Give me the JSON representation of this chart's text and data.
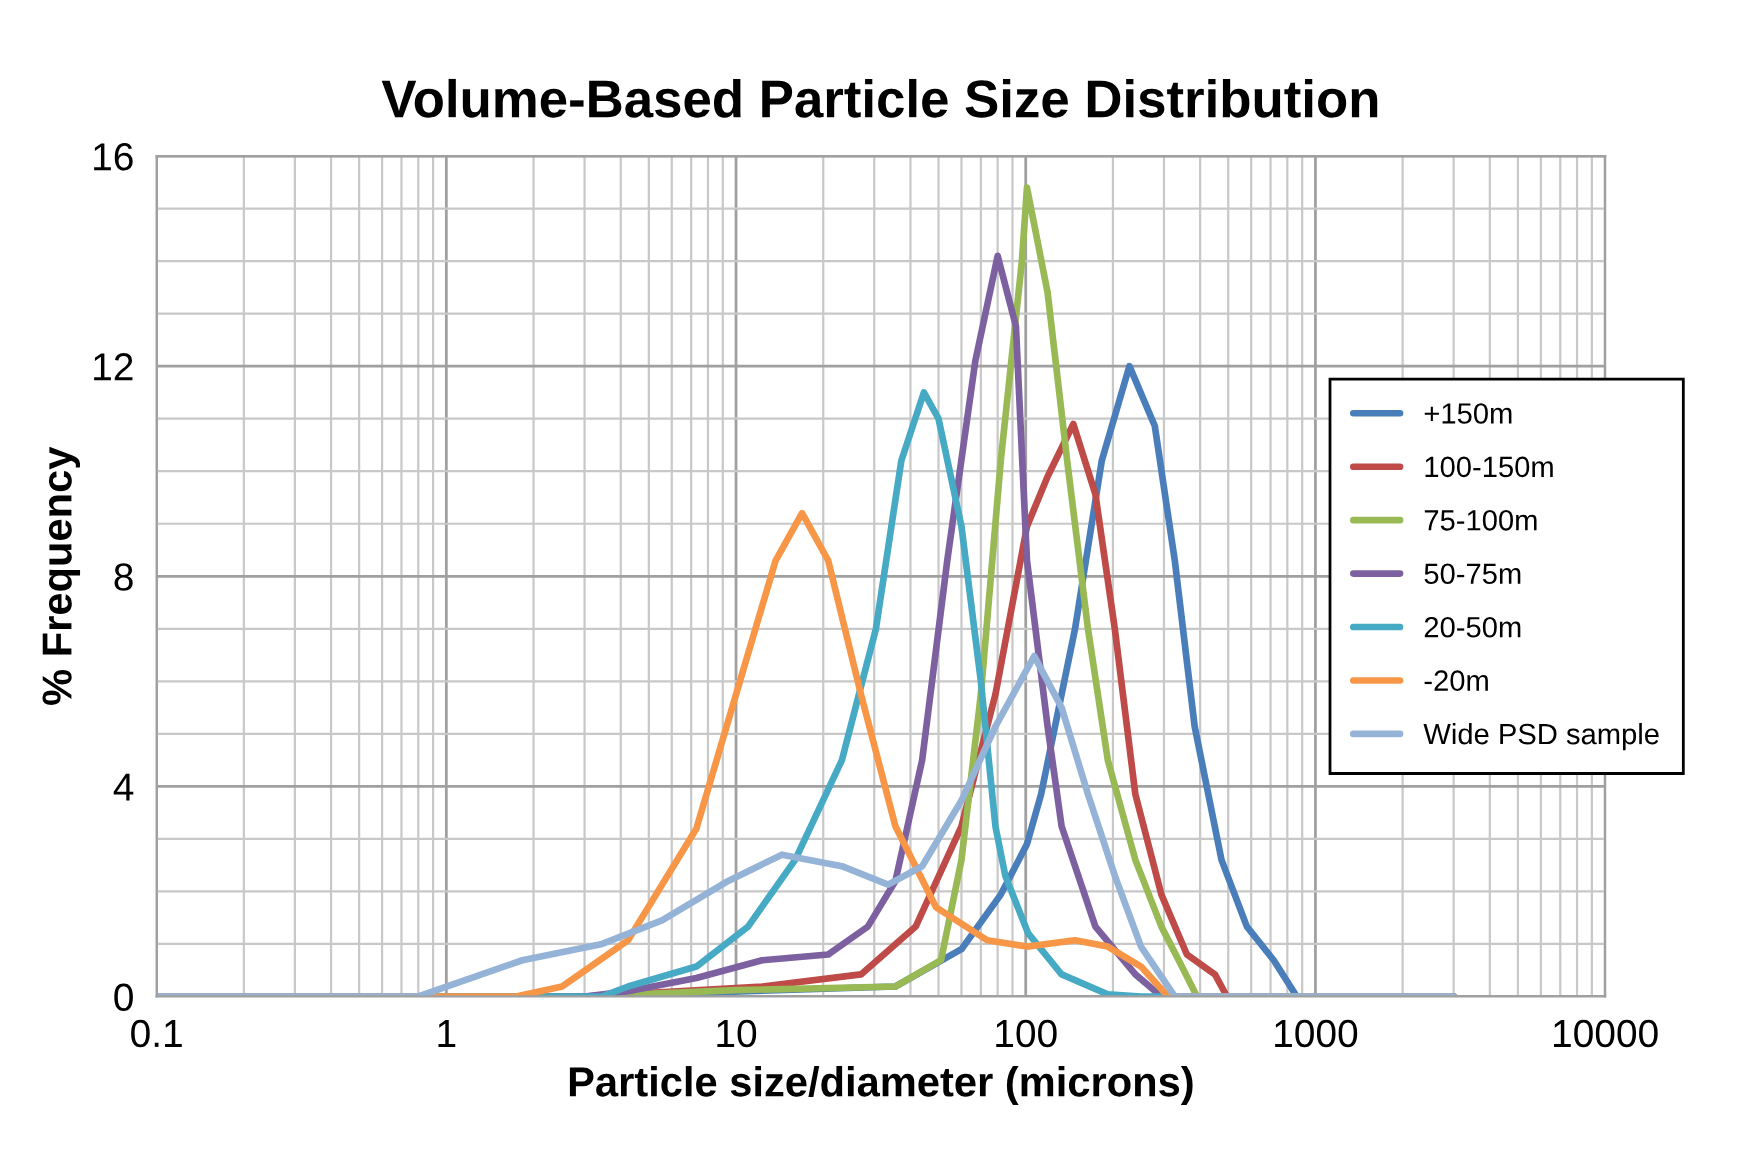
{
  "chart_data": {
    "type": "line",
    "title": "Volume-Based Particle Size Distribution",
    "xlabel": "Particle size/diameter (microns)",
    "ylabel": "% Frequency",
    "log": "x",
    "xlim": [
      0.1,
      10000
    ],
    "xticks": [
      0.1,
      1,
      10,
      100,
      1000,
      10000
    ],
    "ylim": [
      0,
      16
    ],
    "yticks": [
      0,
      4,
      8,
      12,
      16
    ],
    "grid": true,
    "legend": "right",
    "line_style": "solid",
    "marker": "none",
    "series": [
      {
        "name": "+150m",
        "color": "#4a7ebb",
        "x": [
          0.1,
          3,
          35.5,
          60,
          82,
          101,
          113,
          148,
          183,
          228,
          279,
          327,
          383,
          474,
          580,
          718,
          862,
          3000
        ],
        "values": [
          0,
          0,
          0.19,
          0.9,
          1.94,
          2.9,
          3.85,
          7,
          10.2,
          12,
          10.86,
          8.3,
          5.14,
          2.6,
          1.33,
          0.69,
          0,
          0
        ]
      },
      {
        "name": "100-150m",
        "color": "#be4b48",
        "x": [
          0.1,
          3,
          12.3,
          27,
          41.7,
          60,
          78.6,
          101,
          119,
          146,
          174,
          203,
          239,
          294,
          360,
          450,
          495,
          3000
        ],
        "values": [
          0,
          0,
          0.19,
          0.42,
          1.33,
          3.24,
          5.75,
          8.95,
          9.9,
          10.9,
          9.56,
          7,
          3.85,
          1.94,
          0.8,
          0.42,
          0,
          0
        ]
      },
      {
        "name": "75-100m",
        "color": "#98b954",
        "x": [
          0.1,
          3,
          10,
          35.5,
          51,
          60,
          70,
          82,
          97,
          101,
          119,
          139,
          164,
          192,
          239,
          294,
          346,
          390,
          3000
        ],
        "values": [
          0,
          0,
          0.12,
          0.19,
          0.69,
          2.6,
          5.75,
          10.2,
          14,
          15.4,
          13.4,
          10.2,
          7,
          4.5,
          2.6,
          1.33,
          0.57,
          0,
          0
        ]
      },
      {
        "name": "50-75m",
        "color": "#7d60a0",
        "x": [
          0.1,
          3,
          4.24,
          7.3,
          12.3,
          20.8,
          28.5,
          35.5,
          43.9,
          53.6,
          67,
          80,
          92.5,
          101,
          119,
          133,
          174,
          239,
          294,
          3000
        ],
        "values": [
          0,
          0,
          0.1,
          0.35,
          0.69,
          0.8,
          1.33,
          2.2,
          4.5,
          8.3,
          12.1,
          14.1,
          12.76,
          8.3,
          5.14,
          3.24,
          1.33,
          0.42,
          0,
          0
        ]
      },
      {
        "name": "20-50m",
        "color": "#46aac5",
        "x": [
          0.1,
          3.45,
          4.24,
          7.3,
          11,
          16,
          23.2,
          30.4,
          37.2,
          44.5,
          50,
          60,
          70,
          78.6,
          85,
          102,
          133,
          192,
          250,
          3000
        ],
        "values": [
          0,
          0,
          0.19,
          0.57,
          1.33,
          2.6,
          4.5,
          7,
          10.2,
          11.5,
          11,
          8.95,
          6,
          3.24,
          2.3,
          1.2,
          0.42,
          0.04,
          0,
          0
        ]
      },
      {
        "name": "-20m",
        "color": "#f79646",
        "x": [
          0.1,
          1.74,
          2.51,
          4.24,
          7.3,
          10,
          13.7,
          16.9,
          20.8,
          27,
          35.5,
          49,
          73.6,
          101,
          148,
          192,
          250,
          310,
          3000
        ],
        "values": [
          0,
          0,
          0.19,
          1.07,
          3.2,
          5.75,
          8.3,
          9.2,
          8.3,
          5.75,
          3.24,
          1.7,
          1.07,
          0.95,
          1.07,
          0.95,
          0.57,
          0,
          0
        ]
      },
      {
        "name": "Wide PSD sample",
        "color": "#95b3d7",
        "x": [
          0.1,
          0.8,
          1.83,
          3.45,
          5.55,
          9.4,
          14.4,
          23.2,
          33.5,
          43.9,
          60,
          78.6,
          107,
          133,
          164,
          203,
          250,
          327,
          3000
        ],
        "values": [
          0,
          0,
          0.69,
          1,
          1.45,
          2.2,
          2.7,
          2.48,
          2.13,
          2.48,
          3.73,
          5.14,
          6.48,
          5.5,
          3.85,
          2.3,
          0.95,
          0,
          0
        ]
      }
    ]
  }
}
